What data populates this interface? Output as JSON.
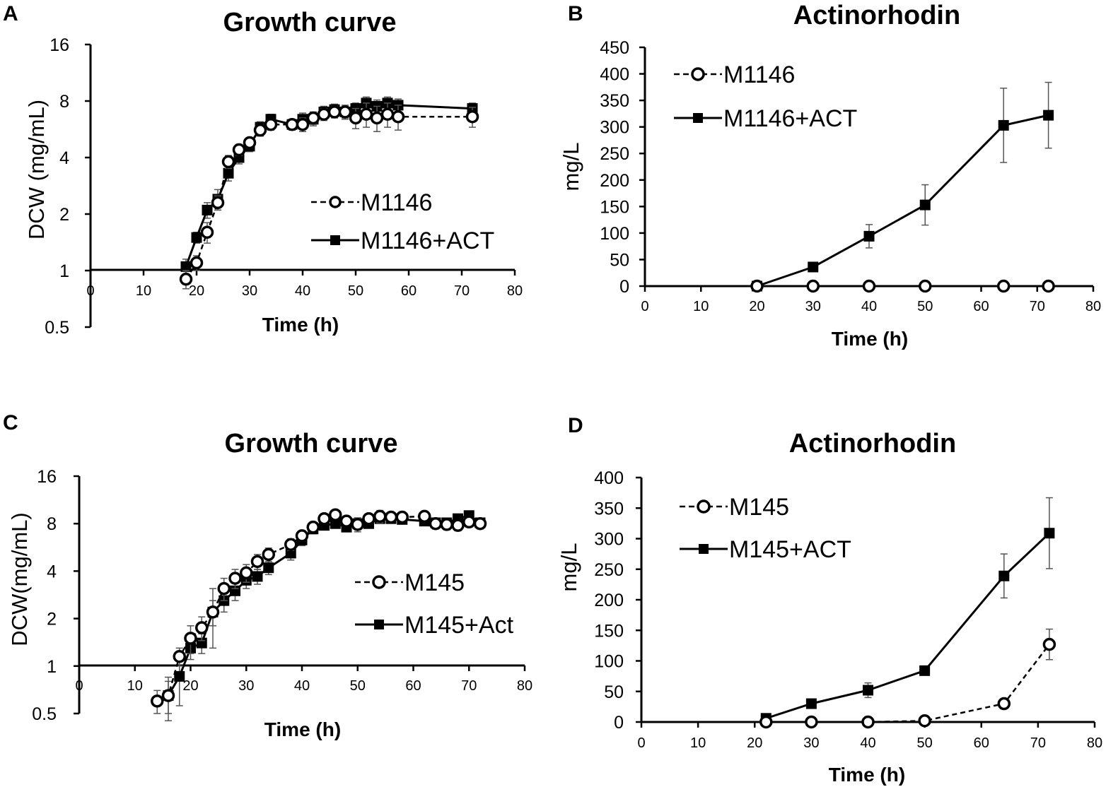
{
  "chart_data": [
    {
      "id": "A",
      "panel_label": "A",
      "type": "line",
      "title": "Growth curve",
      "xlabel": "Time (h)",
      "ylabel": "DCW (mg/mL)",
      "yscale": "log2",
      "xlim": [
        0,
        80
      ],
      "ylim": [
        0.5,
        16
      ],
      "xticks": [
        "0",
        "10",
        "20",
        "30",
        "40",
        "50",
        "60",
        "70",
        "80"
      ],
      "yticks": [
        "0.5",
        "1",
        "2",
        "4",
        "8",
        "16"
      ],
      "legend_position": "center-right",
      "series": [
        {
          "name": "M1146",
          "marker": "open-circle",
          "line": "dashed",
          "x": [
            18,
            20,
            22,
            24,
            26,
            28,
            30,
            32,
            34,
            38,
            40,
            42,
            44,
            46,
            48,
            50,
            52,
            54,
            56,
            58,
            72
          ],
          "y": [
            0.9,
            1.1,
            1.6,
            2.3,
            3.8,
            4.4,
            4.8,
            5.6,
            6.0,
            6.0,
            6.0,
            6.5,
            6.8,
            7.0,
            7.0,
            6.5,
            6.8,
            6.5,
            6.8,
            6.6,
            6.6
          ],
          "err": [
            0.1,
            0.1,
            0.2,
            0.2,
            0.3,
            0.3,
            0.3,
            0.4,
            0.4,
            0.4,
            0.5,
            0.5,
            0.5,
            0.5,
            0.6,
            0.8,
            1.0,
            1.0,
            1.0,
            1.0,
            0.8
          ]
        },
        {
          "name": "M1146+ACT",
          "marker": "filled-square",
          "line": "solid",
          "x": [
            18,
            20,
            22,
            24,
            26,
            28,
            30,
            32,
            34,
            38,
            40,
            42,
            44,
            46,
            48,
            50,
            52,
            54,
            56,
            58,
            72
          ],
          "y": [
            1.05,
            1.5,
            2.1,
            2.4,
            3.3,
            4.0,
            4.6,
            5.8,
            6.4,
            6.0,
            6.4,
            6.4,
            7.0,
            7.2,
            7.0,
            7.3,
            7.8,
            7.5,
            7.8,
            7.6,
            7.3
          ],
          "err": [
            0.1,
            0.1,
            0.2,
            0.3,
            0.3,
            0.3,
            0.3,
            0.4,
            0.4,
            0.4,
            0.5,
            0.5,
            0.5,
            0.5,
            0.5,
            0.5,
            0.6,
            0.6,
            0.6,
            0.6,
            0.5
          ]
        }
      ]
    },
    {
      "id": "B",
      "panel_label": "B",
      "type": "line",
      "title": "Actinorhodin",
      "xlabel": "Time (h)",
      "ylabel": "mg/L",
      "yscale": "linear",
      "xlim": [
        0,
        80
      ],
      "ylim": [
        0,
        450
      ],
      "xticks": [
        "0",
        "10",
        "20",
        "30",
        "40",
        "50",
        "60",
        "70",
        "80"
      ],
      "yticks": [
        "0",
        "50",
        "100",
        "150",
        "200",
        "250",
        "300",
        "350",
        "400",
        "450"
      ],
      "legend_position": "top-left",
      "series": [
        {
          "name": "M1146",
          "marker": "open-circle",
          "line": "dashed",
          "x": [
            20,
            30,
            40,
            50,
            64,
            72
          ],
          "y": [
            0,
            0,
            0,
            0,
            0,
            0
          ],
          "err": [
            0,
            0,
            0,
            0,
            0,
            0
          ]
        },
        {
          "name": "M1146+ACT",
          "marker": "filled-square",
          "line": "solid",
          "x": [
            20,
            30,
            40,
            50,
            64,
            72
          ],
          "y": [
            0,
            36,
            94,
            153,
            303,
            322
          ],
          "err": [
            0,
            3,
            22,
            38,
            70,
            62
          ]
        }
      ]
    },
    {
      "id": "C",
      "panel_label": "C",
      "type": "line",
      "title": "Growth curve",
      "xlabel": "Time (h)",
      "ylabel": "DCW(mg/mL)",
      "yscale": "log2",
      "xlim": [
        0,
        80
      ],
      "ylim": [
        0.5,
        16
      ],
      "xticks": [
        "0",
        "10",
        "20",
        "30",
        "40",
        "50",
        "60",
        "70",
        "80"
      ],
      "yticks": [
        "0.5",
        "1",
        "2",
        "4",
        "8",
        "16"
      ],
      "legend_position": "center-right",
      "series": [
        {
          "name": "M145",
          "marker": "open-circle",
          "line": "dashed",
          "x": [
            14,
            16,
            18,
            20,
            22,
            24,
            26,
            28,
            30,
            32,
            34,
            38,
            40,
            42,
            44,
            46,
            48,
            50,
            52,
            54,
            56,
            58,
            62,
            64,
            66,
            68,
            70,
            72
          ],
          "y": [
            0.6,
            0.65,
            1.15,
            1.5,
            1.75,
            2.2,
            3.1,
            3.6,
            3.9,
            4.6,
            5.1,
            5.9,
            6.7,
            7.6,
            8.6,
            9.1,
            8.3,
            7.9,
            8.6,
            8.9,
            8.8,
            8.8,
            8.9,
            8.0,
            7.9,
            7.8,
            8.2,
            8.0
          ],
          "err": [
            0.1,
            0.15,
            0.15,
            0.3,
            0.3,
            0.4,
            0.5,
            0.5,
            0.5,
            0.5,
            0.5,
            0.5,
            0.5,
            0.5,
            0.5,
            0.5,
            0.6,
            0.8,
            0.6,
            0.8,
            0.6,
            0.6,
            0.6,
            0.6,
            0.6,
            0.6,
            0.6,
            0.6
          ]
        },
        {
          "name": "M145+Act",
          "marker": "filled-square",
          "line": "solid",
          "x": [
            16,
            18,
            20,
            22,
            24,
            26,
            28,
            30,
            32,
            34,
            38,
            40,
            42,
            44,
            46,
            48,
            50,
            52,
            54,
            56,
            58,
            62,
            64,
            66,
            68,
            70,
            72
          ],
          "y": [
            0.65,
            0.86,
            1.3,
            1.4,
            2.2,
            2.6,
            3.0,
            3.5,
            3.7,
            4.2,
            5.2,
            6.3,
            7.4,
            7.8,
            8.0,
            7.6,
            8.0,
            8.0,
            8.6,
            8.6,
            8.5,
            8.3,
            8.1,
            8.1,
            8.6,
            9.0,
            8.1
          ],
          "err": [
            0.2,
            0.3,
            0.2,
            0.2,
            0.9,
            0.4,
            0.4,
            0.4,
            0.4,
            0.4,
            0.5,
            0.5,
            0.5,
            0.5,
            0.5,
            0.5,
            0.7,
            0.5,
            0.5,
            0.5,
            0.5,
            0.5,
            0.5,
            0.5,
            0.5,
            0.5,
            0.5
          ]
        }
      ]
    },
    {
      "id": "D",
      "panel_label": "D",
      "type": "line",
      "title": "Actinorhodin",
      "xlabel": "Time (h)",
      "ylabel": "mg/L",
      "yscale": "linear",
      "xlim": [
        0,
        80
      ],
      "ylim": [
        0,
        400
      ],
      "xticks": [
        "0",
        "10",
        "20",
        "30",
        "40",
        "50",
        "60",
        "70",
        "80"
      ],
      "yticks": [
        "0",
        "50",
        "100",
        "150",
        "200",
        "250",
        "300",
        "350",
        "400"
      ],
      "legend_position": "top-left",
      "series": [
        {
          "name": "M145",
          "marker": "open-circle",
          "line": "dashed",
          "x": [
            22,
            30,
            40,
            50,
            64,
            72
          ],
          "y": [
            0,
            0,
            0,
            2,
            30,
            127
          ],
          "err": [
            0,
            0,
            0,
            0,
            3,
            25
          ]
        },
        {
          "name": "M145+ACT",
          "marker": "filled-square",
          "line": "solid",
          "x": [
            22,
            30,
            40,
            50,
            64,
            72
          ],
          "y": [
            6,
            30,
            52,
            84,
            239,
            309
          ],
          "err": [
            0,
            3,
            12,
            3,
            36,
            58
          ]
        }
      ]
    }
  ]
}
